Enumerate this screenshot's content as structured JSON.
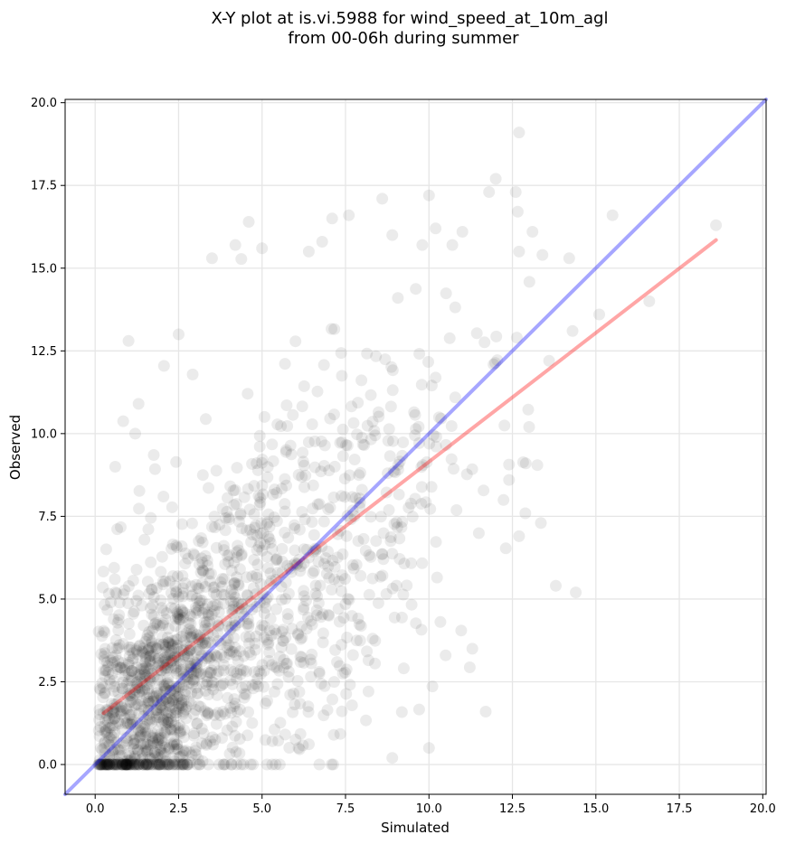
{
  "chart_data": {
    "type": "scatter",
    "title_lines": [
      "X-Y plot at is.vi.5988 for wind_speed_at_10m_agl",
      "from 00-06h during summer"
    ],
    "xlabel": "Simulated",
    "ylabel": "Observed",
    "xlim": [
      -0.9,
      20.1
    ],
    "ylim": [
      -0.9,
      20.1
    ],
    "x_ticks": [
      0.0,
      2.5,
      5.0,
      7.5,
      10.0,
      12.5,
      15.0,
      17.5,
      20.0
    ],
    "y_ticks": [
      0.0,
      2.5,
      5.0,
      7.5,
      10.0,
      12.5,
      15.0,
      17.5,
      20.0
    ],
    "x_tick_labels": [
      "0.0",
      "2.5",
      "5.0",
      "7.5",
      "10.0",
      "12.5",
      "15.0",
      "17.5",
      "20.0"
    ],
    "y_tick_labels": [
      "0.0",
      "2.5",
      "5.0",
      "7.5",
      "10.0",
      "12.5",
      "15.0",
      "17.5",
      "20.0"
    ],
    "grid": true,
    "point_color": "#000000",
    "point_opacity": 0.08,
    "approx_point_count": 1700,
    "highlighted_points": [
      {
        "x": 12.7,
        "y": 19.1
      },
      {
        "x": 12.0,
        "y": 17.7
      },
      {
        "x": 11.8,
        "y": 17.3
      },
      {
        "x": 12.6,
        "y": 17.3
      },
      {
        "x": 10.0,
        "y": 17.2
      },
      {
        "x": 8.6,
        "y": 17.1
      },
      {
        "x": 7.6,
        "y": 16.6
      },
      {
        "x": 7.1,
        "y": 16.5
      },
      {
        "x": 4.6,
        "y": 16.4
      },
      {
        "x": 15.5,
        "y": 16.6
      },
      {
        "x": 18.6,
        "y": 16.3
      },
      {
        "x": 10.2,
        "y": 16.2
      },
      {
        "x": 11.0,
        "y": 16.1
      },
      {
        "x": 13.1,
        "y": 16.1
      },
      {
        "x": 8.9,
        "y": 16.0
      },
      {
        "x": 6.8,
        "y": 15.8
      },
      {
        "x": 4.2,
        "y": 15.7
      },
      {
        "x": 9.8,
        "y": 15.7
      },
      {
        "x": 10.7,
        "y": 15.7
      },
      {
        "x": 5.0,
        "y": 15.6
      },
      {
        "x": 6.4,
        "y": 15.5
      },
      {
        "x": 12.7,
        "y": 15.5
      },
      {
        "x": 13.4,
        "y": 15.4
      },
      {
        "x": 3.5,
        "y": 15.3
      },
      {
        "x": 14.2,
        "y": 15.3
      },
      {
        "x": 16.6,
        "y": 14.0
      },
      {
        "x": 15.1,
        "y": 13.6
      },
      {
        "x": 14.3,
        "y": 13.1
      },
      {
        "x": 13.6,
        "y": 12.2
      },
      {
        "x": 12.4,
        "y": 8.6
      },
      {
        "x": 12.7,
        "y": 6.9
      },
      {
        "x": 11.7,
        "y": 1.6
      },
      {
        "x": 13.8,
        "y": 5.4
      },
      {
        "x": 14.4,
        "y": 5.2
      },
      {
        "x": 13.0,
        "y": 10.2
      },
      {
        "x": 12.9,
        "y": 9.1
      },
      {
        "x": 1.0,
        "y": 12.8
      },
      {
        "x": 2.5,
        "y": 13.0
      },
      {
        "x": 0.6,
        "y": 9.0
      },
      {
        "x": 1.3,
        "y": 10.9
      },
      {
        "x": 1.2,
        "y": 10.0
      },
      {
        "x": 10.0,
        "y": 0.5
      },
      {
        "x": 8.9,
        "y": 0.2
      },
      {
        "x": 11.3,
        "y": 3.5
      },
      {
        "x": 10.5,
        "y": 3.3
      }
    ],
    "series": [
      {
        "type": "line",
        "color": "#ff0000",
        "opacity": 0.35,
        "points": [
          [
            0.25,
            1.55
          ],
          [
            18.6,
            15.85
          ]
        ]
      },
      {
        "type": "line",
        "color": "#0000ff",
        "opacity": 0.35,
        "points": [
          [
            -0.9,
            -0.9
          ],
          [
            20.1,
            20.1
          ]
        ]
      }
    ]
  }
}
